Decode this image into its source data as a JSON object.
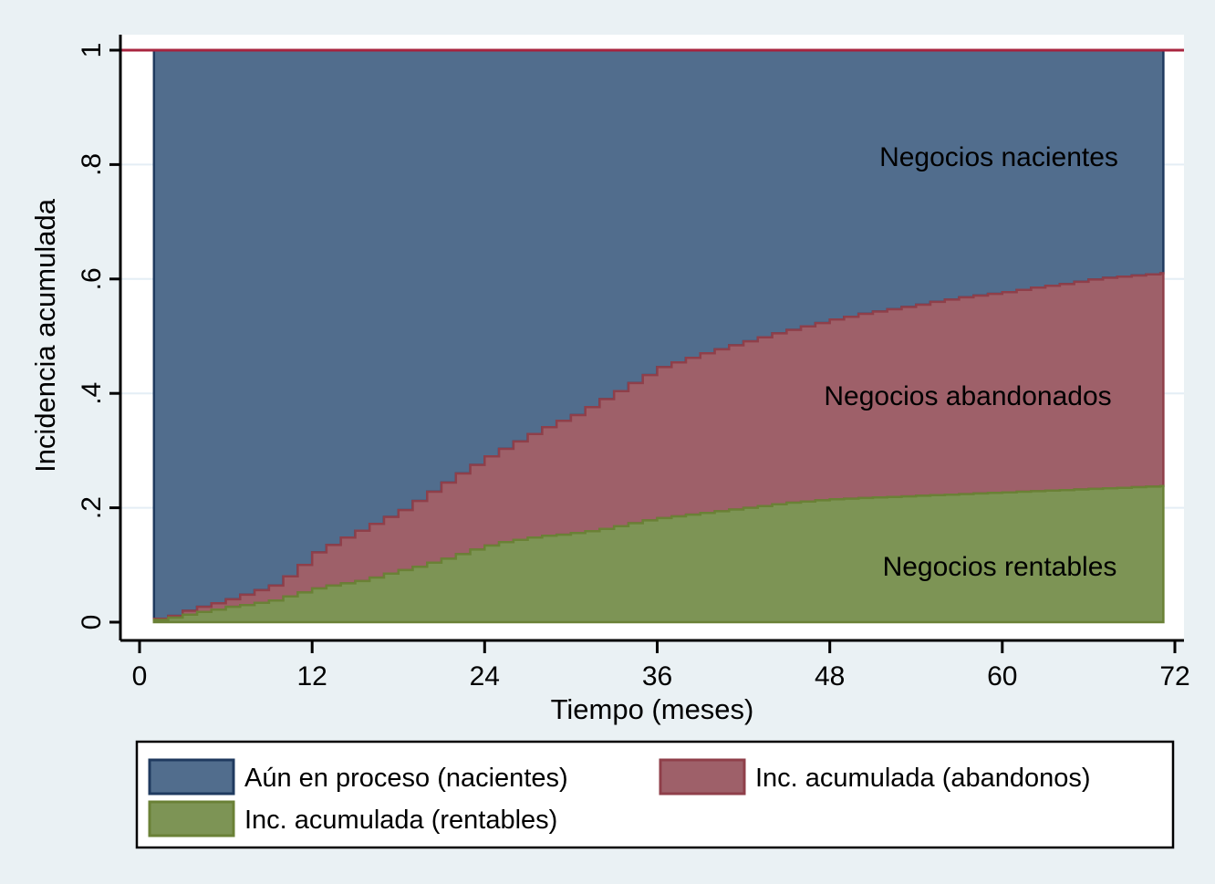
{
  "colors": {
    "background": "#eaf1f4",
    "plot_background": "#ffffff",
    "gridline": "#e4eef5",
    "axis": "#000000",
    "text": "#000000",
    "reference_line": "#a8243f",
    "nacientes_fill": "#516d8d",
    "nacientes_stroke": "#1f3a5f",
    "abandonos_fill": "#9e6069",
    "abandonos_stroke": "#8f3f4a",
    "rentables_fill": "#7d9455",
    "rentables_stroke": "#6a8136"
  },
  "axes": {
    "x_title": "Tiempo (meses)",
    "y_title": "Incidencia acumulada"
  },
  "area_labels": {
    "nacientes": "Negocios nacientes",
    "abandonos": "Negocios abandonados",
    "rentables": "Negocios rentables"
  },
  "legend": {
    "items": [
      {
        "label": "Aún en proceso (nacientes)",
        "swatch": "nacientes"
      },
      {
        "label": "Inc. acumulada (abandonos)",
        "swatch": "abandonos"
      },
      {
        "label": "Inc. acumulada (rentables)",
        "swatch": "rentables"
      }
    ]
  },
  "chart_data": {
    "type": "area",
    "stacked": true,
    "title": "",
    "xlabel": "Tiempo (meses)",
    "ylabel": "Incidencia acumulada",
    "xlim": [
      0,
      72
    ],
    "ylim": [
      0,
      1
    ],
    "x_tick_values": [
      0,
      12,
      24,
      36,
      48,
      60,
      72
    ],
    "x_tick_labels": [
      "0",
      "12",
      "24",
      "36",
      "48",
      "60",
      "72"
    ],
    "y_tick_values": [
      0,
      0.2,
      0.4,
      0.6,
      0.8,
      1
    ],
    "y_tick_labels": [
      "0",
      ".2",
      ".4",
      ".6",
      ".8",
      "1"
    ],
    "gridline_values": [
      0.2,
      0.4,
      0.6,
      0.8,
      1
    ],
    "reference_line_y": 1,
    "step_months_start": 1,
    "step_month_interval": 1,
    "x_end": 71.2,
    "legend_position": "bottom",
    "grid": true,
    "series": [
      {
        "name": "Inc. acumulada (rentables)",
        "role": "bottom-band",
        "values": [
          0.004,
          0.008,
          0.013,
          0.018,
          0.022,
          0.027,
          0.03,
          0.034,
          0.038,
          0.045,
          0.052,
          0.059,
          0.064,
          0.068,
          0.072,
          0.078,
          0.085,
          0.091,
          0.097,
          0.104,
          0.111,
          0.119,
          0.127,
          0.134,
          0.14,
          0.144,
          0.148,
          0.151,
          0.153,
          0.156,
          0.159,
          0.163,
          0.168,
          0.173,
          0.178,
          0.182,
          0.185,
          0.188,
          0.191,
          0.194,
          0.197,
          0.2,
          0.203,
          0.206,
          0.209,
          0.211,
          0.213,
          0.215,
          0.216,
          0.217,
          0.218,
          0.219,
          0.22,
          0.221,
          0.222,
          0.223,
          0.224,
          0.225,
          0.226,
          0.227,
          0.228,
          0.229,
          0.23,
          0.231,
          0.232,
          0.233,
          0.234,
          0.235,
          0.236,
          0.237,
          0.238
        ]
      },
      {
        "name": "Inc. acumulada (rentables) + Inc. acumulada (abandonos)",
        "role": "middle-band-top",
        "values": [
          0.006,
          0.011,
          0.02,
          0.027,
          0.033,
          0.04,
          0.048,
          0.056,
          0.064,
          0.08,
          0.1,
          0.122,
          0.135,
          0.148,
          0.16,
          0.172,
          0.184,
          0.196,
          0.212,
          0.228,
          0.244,
          0.26,
          0.275,
          0.29,
          0.303,
          0.316,
          0.329,
          0.341,
          0.352,
          0.362,
          0.376,
          0.39,
          0.404,
          0.418,
          0.432,
          0.446,
          0.454,
          0.462,
          0.47,
          0.477,
          0.484,
          0.491,
          0.498,
          0.505,
          0.511,
          0.517,
          0.523,
          0.529,
          0.534,
          0.539,
          0.543,
          0.547,
          0.551,
          0.555,
          0.56,
          0.564,
          0.568,
          0.571,
          0.574,
          0.577,
          0.581,
          0.585,
          0.588,
          0.591,
          0.595,
          0.599,
          0.602,
          0.604,
          0.606,
          0.608,
          0.61
        ]
      },
      {
        "name": "Aún en proceso (nacientes)",
        "role": "remainder-up-to-1"
      }
    ]
  }
}
